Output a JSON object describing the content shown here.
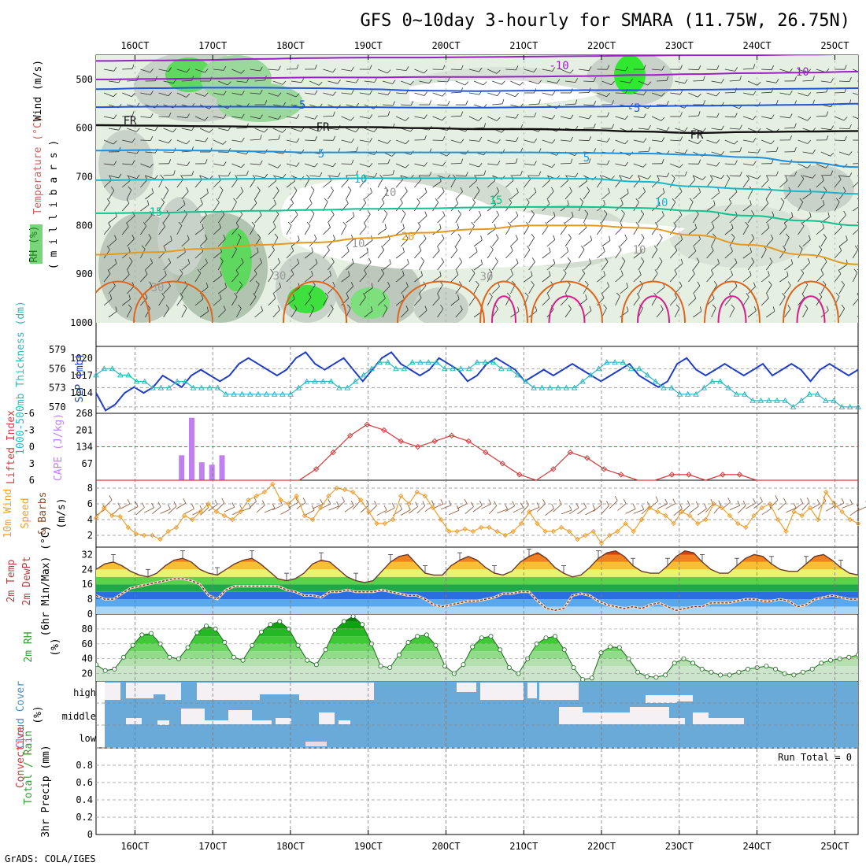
{
  "title": "GFS 0~10day 3-hourly for SMARA (11.75W, 26.75N)",
  "footer": "GrADS: COLA/IGES",
  "run_total": "Run Total = 0",
  "x_axis": {
    "ticks": [
      "16OCT",
      "17OCT",
      "18OCT",
      "19OCT",
      "20OCT",
      "21OCT",
      "22OCT",
      "23OCT",
      "24OCT",
      "25OCT"
    ],
    "range_days": [
      15.5,
      25.3
    ]
  },
  "colors": {
    "temp_purple": "#9a1fc9",
    "temp_blue": "#2255dd",
    "freezing": "#111111",
    "temp_lightblue": "#1e90e0",
    "temp_cyan": "#18b8c8",
    "temp_teal": "#12c090",
    "temp_orange": "#e29a24",
    "temp_darkorange": "#e0641c",
    "temp_magenta": "#d81c8a",
    "slp": "#1e3cc8",
    "thickness": "#30b8c0",
    "lifted_index": "#d63a3a",
    "cape": "#c080f0",
    "wind_speed": "#f0a030",
    "barbs": "#8a5030",
    "rh2m": "#2ec030",
    "cloud_sky": "#6aaad8",
    "cloud_white": "#f4f0f4"
  },
  "chart_data": [
    {
      "id": "upper-air",
      "type": "heatmap",
      "ylabel_parts": [
        "RH (%)",
        "Temperature (°C)",
        "Wind (m/s)"
      ],
      "ylabel_sub": "( m i l l i b a r s )",
      "y_ticks": [
        "500",
        "600",
        "700",
        "800",
        "900",
        "1000"
      ],
      "ylim": [
        450,
        1000
      ],
      "isotherms": [
        {
          "label": "-10",
          "color": "temp_purple",
          "levels": [
            462,
            461,
            460,
            458,
            456,
            455,
            455,
            454,
            453,
            452,
            451,
            450,
            450,
            449,
            448
          ]
        },
        {
          "label": "-10",
          "color": "temp_purple",
          "levels": [
            500,
            499,
            498,
            497,
            496,
            496,
            495,
            495,
            494,
            493,
            491,
            489,
            487,
            486,
            484
          ]
        },
        {
          "label": "-5",
          "color": "temp_blue",
          "levels": [
            520,
            518,
            517,
            517,
            518,
            520,
            523,
            524,
            523,
            522,
            522,
            521,
            520,
            519,
            518
          ]
        },
        {
          "label": "-5",
          "color": "temp_blue",
          "levels": [
            557,
            556,
            556,
            556,
            557,
            557,
            558,
            558,
            557,
            556,
            555,
            554,
            553,
            552,
            550
          ]
        },
        {
          "label": "FR",
          "color": "freezing",
          "levels": [
            594,
            595,
            596,
            597,
            598,
            598,
            600,
            602,
            602,
            604,
            607,
            610,
            608,
            607,
            606
          ]
        },
        {
          "label": "5",
          "color": "temp_lightblue",
          "levels": [
            646,
            645,
            646,
            648,
            650,
            650,
            650,
            650,
            650,
            651,
            652,
            655,
            660,
            670,
            680
          ]
        },
        {
          "label": "10",
          "color": "temp_cyan",
          "levels": [
            707,
            706,
            705,
            704,
            704,
            703,
            703,
            703,
            703,
            704,
            710,
            720,
            725,
            730,
            735
          ]
        },
        {
          "label": "15",
          "color": "temp_teal",
          "levels": [
            775,
            774,
            772,
            770,
            768,
            766,
            765,
            763,
            762,
            762,
            764,
            770,
            780,
            790,
            800
          ]
        },
        {
          "label": "20",
          "color": "temp_orange",
          "levels": [
            860,
            855,
            848,
            840,
            835,
            826,
            815,
            808,
            800,
            800,
            805,
            820,
            840,
            860,
            880
          ]
        }
      ],
      "contour_labels": [
        "-10",
        "-10",
        "-5",
        "-5",
        "FR",
        "FR",
        "FR",
        "5",
        "5",
        "10",
        "10",
        "15",
        "15",
        "20",
        "10",
        "10",
        "10",
        "30",
        "30",
        "30"
      ]
    },
    {
      "id": "slp-thickness",
      "type": "line",
      "ylabel_left": "1000-500mb Thickness (dm)",
      "ylabel_right": "SLP (mb)",
      "y_left_ticks": [
        "579",
        "576",
        "573",
        "570"
      ],
      "y_right_ticks": [
        "1020",
        "1017",
        "1014"
      ],
      "y_left_lim": [
        569,
        579.5
      ],
      "y_right_lim": [
        1010.5,
        1022
      ],
      "series": [
        {
          "name": "SLP (mb)",
          "color": "slp",
          "values": [
            1014,
            1011,
            1012,
            1014,
            1015,
            1014,
            1015,
            1017,
            1016,
            1015,
            1017,
            1018,
            1017,
            1016,
            1017,
            1019,
            1020,
            1019,
            1018,
            1017,
            1018,
            1020,
            1021,
            1019,
            1018,
            1019,
            1020,
            1018,
            1016,
            1018,
            1020,
            1021,
            1019,
            1018,
            1017,
            1018,
            1020,
            1019,
            1018,
            1016,
            1017,
            1019,
            1020,
            1019,
            1018,
            1016,
            1017,
            1018,
            1017,
            1018,
            1019,
            1018,
            1017,
            1016,
            1017,
            1018,
            1019,
            1017,
            1016,
            1015,
            1016,
            1019,
            1020,
            1018,
            1017,
            1018,
            1019,
            1018,
            1017,
            1018,
            1019,
            1017,
            1018,
            1019,
            1018,
            1016,
            1018,
            1019,
            1018,
            1017,
            1018
          ]
        },
        {
          "name": "1000-500mb Thickness (dm)",
          "color": "thickness",
          "values": [
            575,
            576,
            576,
            575,
            575,
            574,
            574,
            573,
            573,
            573,
            574,
            574,
            573,
            573,
            573,
            573,
            572,
            572,
            572,
            572,
            572,
            572,
            572,
            572,
            572,
            573,
            574,
            574,
            574,
            574,
            573,
            573,
            574,
            575,
            576,
            577,
            577,
            576,
            576,
            577,
            577,
            577,
            577,
            576,
            576,
            576,
            576,
            577,
            577,
            577,
            576,
            576,
            575,
            574,
            573,
            573,
            573,
            573,
            573,
            573,
            574,
            575,
            576,
            577,
            577,
            577,
            576,
            576,
            575,
            574,
            573,
            573,
            572,
            572,
            572,
            573,
            574,
            574,
            573,
            572,
            572,
            571,
            571,
            571,
            571,
            571,
            570,
            571,
            572,
            572,
            571,
            571,
            570,
            570,
            570
          ]
        }
      ]
    },
    {
      "id": "li-cape",
      "type": "bar",
      "ylabel_left": "Lifted Index",
      "ylabel_right": "CAPE (J/kg)",
      "y_left_ticks": [
        "-6",
        "-3",
        "0",
        "3",
        "6"
      ],
      "y_right_ticks": [
        "268",
        "201",
        "134",
        "67"
      ],
      "ylim_cape": [
        0,
        268
      ],
      "cape_bars": [
        {
          "day": 16.6,
          "value": 100
        },
        {
          "day": 16.73,
          "value": 250
        },
        {
          "day": 16.86,
          "value": 72
        },
        {
          "day": 16.99,
          "value": 62
        },
        {
          "day": 17.12,
          "value": 100
        }
      ],
      "li_series": [
        6,
        6,
        6,
        6,
        6,
        6,
        6,
        6,
        6,
        6,
        6,
        6,
        6,
        4,
        1,
        -2,
        -4,
        -3,
        -1,
        0,
        -1,
        -2,
        -1,
        1,
        3,
        5,
        6,
        4,
        1,
        2,
        4,
        5,
        6,
        6,
        5,
        5,
        6,
        5,
        5,
        6,
        6,
        6,
        6,
        6,
        6,
        6
      ]
    },
    {
      "id": "wind10m",
      "type": "line",
      "ylabel_parts": [
        "10m Wind",
        "Speed",
        "& Barbs",
        "(m/s)"
      ],
      "y_ticks": [
        "8",
        "6",
        "4",
        "2"
      ],
      "ylim": [
        0.5,
        9
      ],
      "values": [
        4.2,
        5.5,
        4.5,
        4.4,
        3.0,
        2.2,
        2.0,
        2.0,
        1.5,
        2.5,
        3.0,
        4.5,
        4.0,
        5.0,
        6.0,
        5.0,
        4.5,
        4.0,
        5.0,
        6.5,
        7.0,
        7.5,
        8.5,
        6.5,
        6.0,
        7.0,
        4.5,
        4.0,
        5.5,
        7.0,
        8.0,
        7.8,
        7.5,
        6.5,
        5.0,
        3.5,
        3.5,
        4.0,
        7.0,
        6.0,
        7.5,
        7.0,
        5.5,
        4.0,
        2.5,
        2.5,
        2.8,
        2.5,
        3.0,
        3.0,
        2.5,
        2.0,
        2.5,
        3.5,
        5.0,
        3.5,
        2.5,
        2.5,
        3.0,
        2.5,
        1.5,
        2.0,
        2.5,
        1.0,
        2.0,
        2.5,
        3.5,
        2.5,
        4.0,
        5.5,
        5.0,
        4.5,
        3.5,
        5.0,
        4.5,
        3.5,
        4.0,
        6.0,
        5.5,
        4.5,
        3.5,
        3.0,
        4.5,
        5.5,
        6.0,
        4.0,
        2.5,
        5.0,
        4.5,
        5.5,
        4.0,
        7.5,
        6.0,
        5.0,
        4.0,
        3.5
      ]
    },
    {
      "id": "temp2m",
      "type": "area",
      "ylabel_parts": [
        "2m Temp",
        "2m DewPt",
        "(6hr Min/Max) (°C)"
      ],
      "y_ticks": [
        "32",
        "24",
        "16",
        "8",
        "0"
      ],
      "ylim": [
        0,
        36
      ],
      "temp": [
        24,
        27,
        28,
        26,
        23,
        21,
        20,
        22,
        26,
        29,
        30,
        28,
        24,
        22,
        21,
        24,
        27,
        29,
        30,
        27,
        23,
        19,
        18,
        19,
        22,
        27,
        29,
        28,
        24,
        20,
        18,
        17,
        18,
        23,
        28,
        31,
        32,
        27,
        22,
        21,
        21,
        26,
        29,
        31,
        29,
        25,
        22,
        21,
        23,
        28,
        31,
        33,
        30,
        25,
        22,
        20,
        21,
        25,
        30,
        33,
        34,
        31,
        26,
        23,
        22,
        22,
        26,
        31,
        34,
        33,
        28,
        24,
        22,
        22,
        26,
        30,
        32,
        31,
        27,
        24,
        23,
        23,
        27,
        31,
        32,
        29,
        25,
        22,
        21
      ],
      "dewpoint": [
        10,
        8,
        8,
        11,
        14,
        15,
        16,
        17,
        18,
        19,
        19,
        18,
        16,
        10,
        8,
        13,
        15,
        15,
        15,
        15,
        15,
        15,
        13,
        12,
        10,
        10,
        9,
        12,
        12,
        13,
        12,
        12,
        12,
        13,
        12,
        11,
        10,
        10,
        8,
        5,
        4,
        5,
        6,
        7,
        7,
        8,
        9,
        11,
        11,
        12,
        12,
        7,
        3,
        2,
        3,
        10,
        11,
        10,
        7,
        5,
        4,
        3,
        4,
        3,
        5,
        6,
        4,
        2,
        3,
        4,
        4,
        6,
        6,
        6,
        7,
        8,
        8,
        7,
        7,
        8,
        7,
        4,
        5,
        8,
        9,
        10,
        9,
        8,
        8
      ]
    },
    {
      "id": "rh2m",
      "type": "area",
      "ylabel_parts": [
        "2m RH",
        "(%)"
      ],
      "y_ticks": [
        "80",
        "60",
        "40",
        "20"
      ],
      "ylim": [
        10,
        100
      ],
      "values": [
        32,
        24,
        26,
        42,
        58,
        72,
        74,
        60,
        42,
        40,
        55,
        75,
        84,
        80,
        62,
        42,
        38,
        58,
        76,
        86,
        90,
        80,
        58,
        38,
        32,
        52,
        78,
        90,
        97,
        86,
        60,
        30,
        28,
        45,
        62,
        70,
        72,
        58,
        30,
        20,
        32,
        56,
        68,
        70,
        52,
        28,
        20,
        40,
        60,
        68,
        70,
        52,
        28,
        12,
        14,
        48,
        56,
        55,
        40,
        22,
        16,
        15,
        18,
        34,
        40,
        34,
        26,
        22,
        18,
        18,
        22,
        26,
        28,
        30,
        26,
        20,
        18,
        22,
        26,
        34,
        38,
        40,
        42,
        45
      ]
    },
    {
      "id": "cloud-cover",
      "type": "heatmap",
      "ylabel_parts": [
        "Cloud Cover",
        "(%)"
      ],
      "y_ticks": [
        "high",
        "middle",
        "low"
      ]
    },
    {
      "id": "precip",
      "type": "bar",
      "ylabel_parts": [
        "Total / Rain",
        "Convective",
        "3hr Precip (mm)"
      ],
      "y_ticks": [
        "0.8",
        "0.6",
        "0.4",
        "0.2",
        "0"
      ],
      "ylim": [
        0,
        1
      ],
      "values": []
    }
  ]
}
